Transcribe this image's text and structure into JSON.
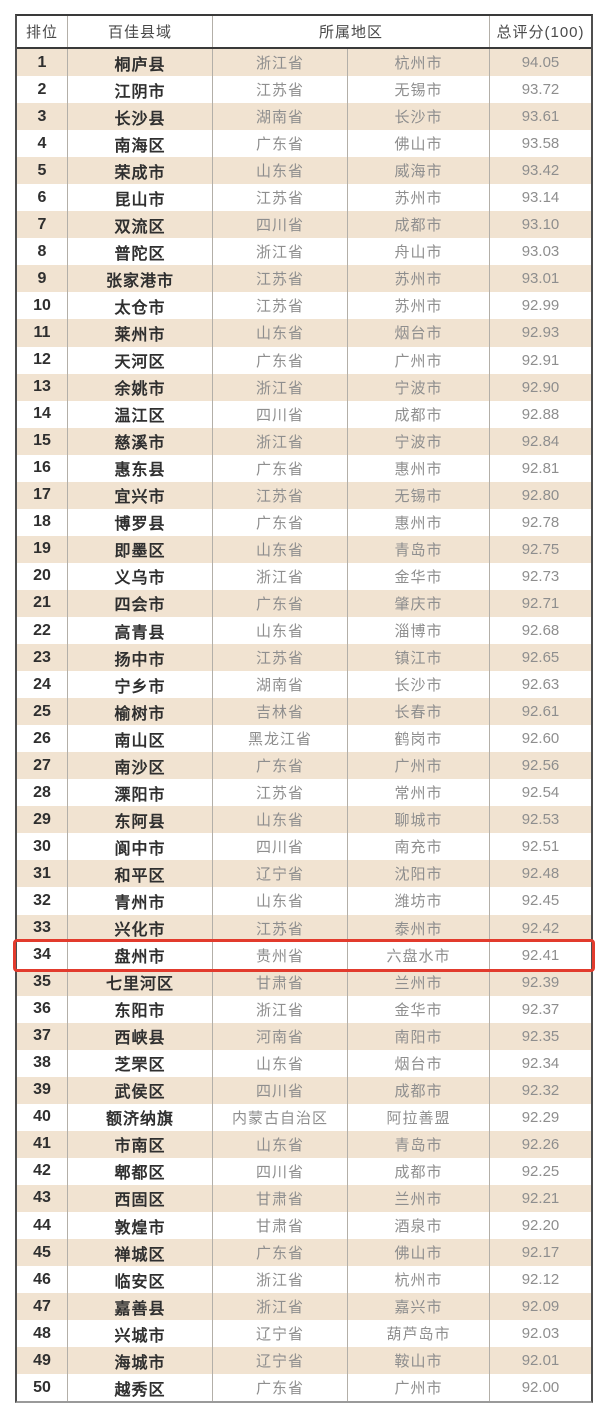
{
  "table": {
    "title_semantic": "china-top-100-counties-ranking",
    "headers": {
      "rank": "排位",
      "county": "百佳县域",
      "region": "所属地区",
      "score": "总评分(100)"
    },
    "highlighted_rank": "34",
    "rows": [
      {
        "rank": "1",
        "county": "桐庐县",
        "province": "浙江省",
        "city": "杭州市",
        "score": "94.05",
        "highlighted": false
      },
      {
        "rank": "2",
        "county": "江阴市",
        "province": "江苏省",
        "city": "无锡市",
        "score": "93.72",
        "highlighted": false
      },
      {
        "rank": "3",
        "county": "长沙县",
        "province": "湖南省",
        "city": "长沙市",
        "score": "93.61",
        "highlighted": false
      },
      {
        "rank": "4",
        "county": "南海区",
        "province": "广东省",
        "city": "佛山市",
        "score": "93.58",
        "highlighted": false
      },
      {
        "rank": "5",
        "county": "荣成市",
        "province": "山东省",
        "city": "威海市",
        "score": "93.42",
        "highlighted": false
      },
      {
        "rank": "6",
        "county": "昆山市",
        "province": "江苏省",
        "city": "苏州市",
        "score": "93.14",
        "highlighted": false
      },
      {
        "rank": "7",
        "county": "双流区",
        "province": "四川省",
        "city": "成都市",
        "score": "93.10",
        "highlighted": false
      },
      {
        "rank": "8",
        "county": "普陀区",
        "province": "浙江省",
        "city": "舟山市",
        "score": "93.03",
        "highlighted": false
      },
      {
        "rank": "9",
        "county": "张家港市",
        "province": "江苏省",
        "city": "苏州市",
        "score": "93.01",
        "highlighted": false
      },
      {
        "rank": "10",
        "county": "太仓市",
        "province": "江苏省",
        "city": "苏州市",
        "score": "92.99",
        "highlighted": false
      },
      {
        "rank": "11",
        "county": "莱州市",
        "province": "山东省",
        "city": "烟台市",
        "score": "92.93",
        "highlighted": false
      },
      {
        "rank": "12",
        "county": "天河区",
        "province": "广东省",
        "city": "广州市",
        "score": "92.91",
        "highlighted": false
      },
      {
        "rank": "13",
        "county": "余姚市",
        "province": "浙江省",
        "city": "宁波市",
        "score": "92.90",
        "highlighted": false
      },
      {
        "rank": "14",
        "county": "温江区",
        "province": "四川省",
        "city": "成都市",
        "score": "92.88",
        "highlighted": false
      },
      {
        "rank": "15",
        "county": "慈溪市",
        "province": "浙江省",
        "city": "宁波市",
        "score": "92.84",
        "highlighted": false
      },
      {
        "rank": "16",
        "county": "惠东县",
        "province": "广东省",
        "city": "惠州市",
        "score": "92.81",
        "highlighted": false
      },
      {
        "rank": "17",
        "county": "宜兴市",
        "province": "江苏省",
        "city": "无锡市",
        "score": "92.80",
        "highlighted": false
      },
      {
        "rank": "18",
        "county": "博罗县",
        "province": "广东省",
        "city": "惠州市",
        "score": "92.78",
        "highlighted": false
      },
      {
        "rank": "19",
        "county": "即墨区",
        "province": "山东省",
        "city": "青岛市",
        "score": "92.75",
        "highlighted": false
      },
      {
        "rank": "20",
        "county": "义乌市",
        "province": "浙江省",
        "city": "金华市",
        "score": "92.73",
        "highlighted": false
      },
      {
        "rank": "21",
        "county": "四会市",
        "province": "广东省",
        "city": "肇庆市",
        "score": "92.71",
        "highlighted": false
      },
      {
        "rank": "22",
        "county": "高青县",
        "province": "山东省",
        "city": "淄博市",
        "score": "92.68",
        "highlighted": false
      },
      {
        "rank": "23",
        "county": "扬中市",
        "province": "江苏省",
        "city": "镇江市",
        "score": "92.65",
        "highlighted": false
      },
      {
        "rank": "24",
        "county": "宁乡市",
        "province": "湖南省",
        "city": "长沙市",
        "score": "92.63",
        "highlighted": false
      },
      {
        "rank": "25",
        "county": "榆树市",
        "province": "吉林省",
        "city": "长春市",
        "score": "92.61",
        "highlighted": false
      },
      {
        "rank": "26",
        "county": "南山区",
        "province": "黑龙江省",
        "city": "鹤岗市",
        "score": "92.60",
        "highlighted": false
      },
      {
        "rank": "27",
        "county": "南沙区",
        "province": "广东省",
        "city": "广州市",
        "score": "92.56",
        "highlighted": false
      },
      {
        "rank": "28",
        "county": "溧阳市",
        "province": "江苏省",
        "city": "常州市",
        "score": "92.54",
        "highlighted": false
      },
      {
        "rank": "29",
        "county": "东阿县",
        "province": "山东省",
        "city": "聊城市",
        "score": "92.53",
        "highlighted": false
      },
      {
        "rank": "30",
        "county": "阆中市",
        "province": "四川省",
        "city": "南充市",
        "score": "92.51",
        "highlighted": false
      },
      {
        "rank": "31",
        "county": "和平区",
        "province": "辽宁省",
        "city": "沈阳市",
        "score": "92.48",
        "highlighted": false
      },
      {
        "rank": "32",
        "county": "青州市",
        "province": "山东省",
        "city": "潍坊市",
        "score": "92.45",
        "highlighted": false
      },
      {
        "rank": "33",
        "county": "兴化市",
        "province": "江苏省",
        "city": "泰州市",
        "score": "92.42",
        "highlighted": false
      },
      {
        "rank": "34",
        "county": "盘州市",
        "province": "贵州省",
        "city": "六盘水市",
        "score": "92.41",
        "highlighted": true
      },
      {
        "rank": "35",
        "county": "七里河区",
        "province": "甘肃省",
        "city": "兰州市",
        "score": "92.39",
        "highlighted": false
      },
      {
        "rank": "36",
        "county": "东阳市",
        "province": "浙江省",
        "city": "金华市",
        "score": "92.37",
        "highlighted": false
      },
      {
        "rank": "37",
        "county": "西峡县",
        "province": "河南省",
        "city": "南阳市",
        "score": "92.35",
        "highlighted": false
      },
      {
        "rank": "38",
        "county": "芝罘区",
        "province": "山东省",
        "city": "烟台市",
        "score": "92.34",
        "highlighted": false
      },
      {
        "rank": "39",
        "county": "武侯区",
        "province": "四川省",
        "city": "成都市",
        "score": "92.32",
        "highlighted": false
      },
      {
        "rank": "40",
        "county": "额济纳旗",
        "province": "内蒙古自治区",
        "city": "阿拉善盟",
        "score": "92.29",
        "highlighted": false
      },
      {
        "rank": "41",
        "county": "市南区",
        "province": "山东省",
        "city": "青岛市",
        "score": "92.26",
        "highlighted": false
      },
      {
        "rank": "42",
        "county": "郫都区",
        "province": "四川省",
        "city": "成都市",
        "score": "92.25",
        "highlighted": false
      },
      {
        "rank": "43",
        "county": "西固区",
        "province": "甘肃省",
        "city": "兰州市",
        "score": "92.21",
        "highlighted": false
      },
      {
        "rank": "44",
        "county": "敦煌市",
        "province": "甘肃省",
        "city": "酒泉市",
        "score": "92.20",
        "highlighted": false
      },
      {
        "rank": "45",
        "county": "禅城区",
        "province": "广东省",
        "city": "佛山市",
        "score": "92.17",
        "highlighted": false
      },
      {
        "rank": "46",
        "county": "临安区",
        "province": "浙江省",
        "city": "杭州市",
        "score": "92.12",
        "highlighted": false
      },
      {
        "rank": "47",
        "county": "嘉善县",
        "province": "浙江省",
        "city": "嘉兴市",
        "score": "92.09",
        "highlighted": false
      },
      {
        "rank": "48",
        "county": "兴城市",
        "province": "辽宁省",
        "city": "葫芦岛市",
        "score": "92.03",
        "highlighted": false
      },
      {
        "rank": "49",
        "county": "海城市",
        "province": "辽宁省",
        "city": "鞍山市",
        "score": "92.01",
        "highlighted": false
      },
      {
        "rank": "50",
        "county": "越秀区",
        "province": "广东省",
        "city": "广州市",
        "score": "92.00",
        "highlighted": false
      }
    ]
  },
  "colors": {
    "stripe": "#f1e3d1",
    "highlight_border": "#e23b2d",
    "dark_border": "#3a3a3a",
    "gray_border": "#9a9a9a",
    "separator": "#b3afa8",
    "text_dark": "#2f2f2f",
    "text_gray": "#8e8e8e",
    "text_header": "#4a4a4a"
  }
}
